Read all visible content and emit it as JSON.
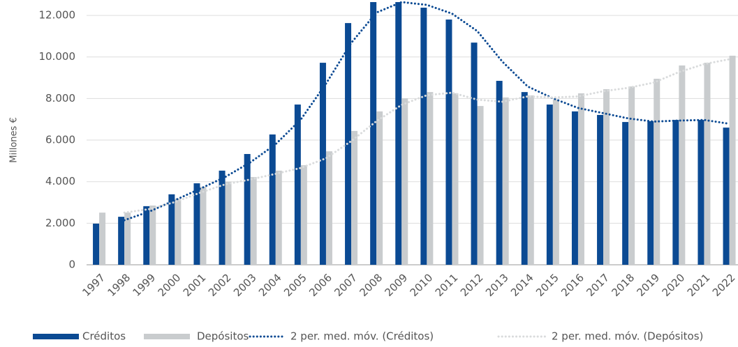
{
  "chart_data": {
    "type": "bar",
    "ylabel": "Millones €",
    "categories": [
      "1997",
      "1998",
      "1999",
      "2000",
      "2001",
      "2002",
      "2003",
      "2004",
      "2005",
      "2006",
      "2007",
      "2008",
      "2009",
      "2010",
      "2011",
      "2012",
      "2013",
      "2014",
      "2015",
      "2016",
      "2017",
      "2018",
      "2019",
      "2020",
      "2021",
      "2022"
    ],
    "series": [
      {
        "name": "Créditos",
        "type": "bar",
        "color": "#0b4a93",
        "values": [
          1980,
          2310,
          2820,
          3390,
          3920,
          4530,
          5330,
          6270,
          7710,
          9720,
          11630,
          12640,
          12640,
          12370,
          11800,
          10690,
          8850,
          8310,
          7710,
          7380,
          7210,
          6870,
          6910,
          6970,
          6970,
          6600
        ]
      },
      {
        "name": "Depósitos",
        "type": "bar",
        "color": "#c9ccce",
        "values": [
          2510,
          2510,
          2850,
          3180,
          3750,
          3990,
          4220,
          4530,
          4790,
          5460,
          6440,
          7380,
          8010,
          8310,
          8250,
          7640,
          8050,
          8150,
          7950,
          8250,
          8450,
          8580,
          8950,
          9590,
          9720,
          10060
        ]
      },
      {
        "name": "2 per. med. móv. (Créditos)",
        "type": "line",
        "color": "#0b4a93",
        "values": [
          null,
          2145,
          2565,
          3105,
          3655,
          4225,
          4930,
          5800,
          6990,
          8715,
          10675,
          12135,
          12640,
          12505,
          12085,
          11245,
          9770,
          8580,
          8010,
          7545,
          7295,
          7040,
          6890,
          6940,
          6970,
          6785
        ]
      },
      {
        "name": "2 per. med. móv. (Depósitos)",
        "type": "line",
        "color": "#d9dbdc",
        "values": [
          null,
          2510,
          2680,
          3015,
          3465,
          3870,
          4105,
          4375,
          4660,
          5125,
          5950,
          6910,
          7695,
          8160,
          8280,
          7945,
          7845,
          8100,
          8050,
          8100,
          8350,
          8515,
          8765,
          9270,
          9655,
          9890
        ]
      }
    ],
    "ylim": [
      0,
      12740
    ],
    "yticks": [
      0,
      {
        "value": 2000,
        "label": "2.000"
      },
      {
        "value": 4000,
        "label": "4.000"
      },
      {
        "value": 6000,
        "label": "6.000"
      },
      {
        "value": 8000,
        "label": "8.000"
      },
      {
        "value": 10000,
        "label": "10.000"
      },
      {
        "value": 12000,
        "label": "12.000"
      }
    ],
    "grid": true,
    "legend": "bottom"
  }
}
